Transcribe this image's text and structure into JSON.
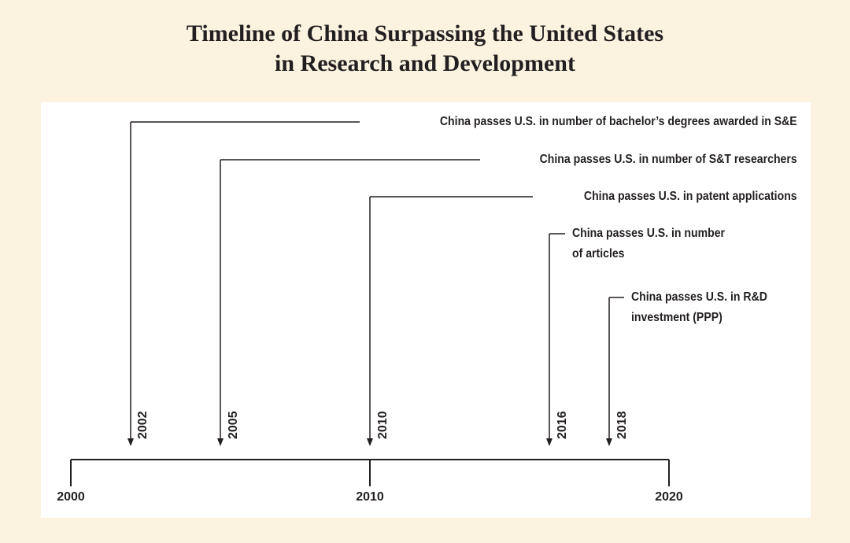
{
  "title": {
    "line1": "Timeline of China Surpassing the United States",
    "line2": "in Research and Development"
  },
  "axis": {
    "start": 2000,
    "end": 2020,
    "tick_labels": [
      "2000",
      "2010",
      "2020"
    ]
  },
  "events": [
    {
      "year": 2002,
      "year_label": "2002",
      "text": "China passes U.S. in number of bachelor’s degrees awarded in S&E"
    },
    {
      "year": 2005,
      "year_label": "2005",
      "text": "China passes U.S. in number of S&T researchers"
    },
    {
      "year": 2010,
      "year_label": "2010",
      "text": "China passes U.S. in patent applications"
    },
    {
      "year": 2016,
      "year_label": "2016",
      "text_line1": "China passes U.S. in number",
      "text_line2": "of articles"
    },
    {
      "year": 2018,
      "year_label": "2018",
      "text_line1": "China passes U.S. in R&D",
      "text_line2": "investment (PPP)"
    }
  ],
  "colors": {
    "background": "#fbf3df",
    "panel": "#ffffff",
    "ink": "#231f20"
  }
}
